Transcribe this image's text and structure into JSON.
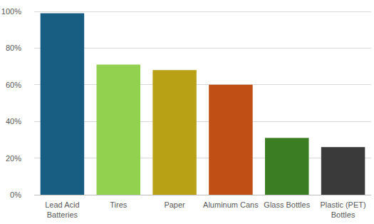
{
  "chart_data": {
    "type": "bar",
    "categories": [
      "Lead Acid Batteries",
      "Tires",
      "Paper",
      "Aluminum Cans",
      "Glass Bottles",
      "Plastic (PET) Bottles"
    ],
    "values": [
      99,
      71,
      68,
      60,
      31,
      26
    ],
    "colors": [
      "#175e82",
      "#92d050",
      "#b8a115",
      "#c04f15",
      "#3a7d22",
      "#3a3a3a"
    ],
    "ylim": [
      0,
      100
    ],
    "yticks": [
      {
        "value": 0,
        "label": "0%"
      },
      {
        "value": 20,
        "label": "20%"
      },
      {
        "value": 40,
        "label": "40%"
      },
      {
        "value": 60,
        "label": "60%"
      },
      {
        "value": 80,
        "label": "80%"
      },
      {
        "value": 100,
        "label": "100%"
      }
    ],
    "grid": true
  }
}
